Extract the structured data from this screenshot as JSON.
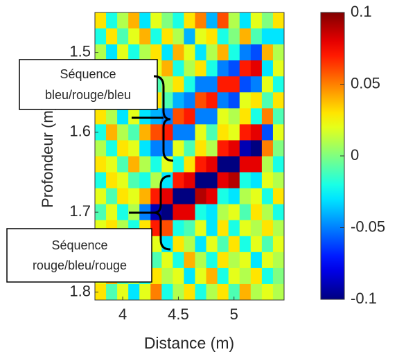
{
  "chart_data": {
    "type": "heatmap",
    "xlabel": "Distance (m)",
    "ylabel": "Profondeur (m)",
    "x": [
      3.8,
      3.9,
      4.0,
      4.1,
      4.2,
      4.3,
      4.4,
      4.5,
      4.6,
      4.7,
      4.8,
      4.9,
      5.0,
      5.1,
      5.2,
      5.3,
      5.4
    ],
    "y": [
      1.46,
      1.48,
      1.5,
      1.52,
      1.54,
      1.56,
      1.58,
      1.6,
      1.62,
      1.64,
      1.66,
      1.68,
      1.7,
      1.72,
      1.74,
      1.76,
      1.78,
      1.8
    ],
    "values": [
      [
        0.03,
        -0.02,
        0.01,
        0.04,
        -0.03,
        0.02,
        0.0,
        -0.02,
        0.03,
        0.05,
        -0.04,
        0.06,
        0.01,
        -0.03,
        0.02,
        0.0,
        0.03
      ],
      [
        -0.02,
        0.03,
        -0.01,
        0.02,
        0.04,
        -0.02,
        0.03,
        0.01,
        -0.04,
        0.02,
        0.03,
        -0.02,
        0.0,
        0.04,
        -0.01,
        -0.03,
        -0.03
      ],
      [
        0.01,
        -0.03,
        0.02,
        -0.02,
        0.01,
        0.03,
        -0.03,
        0.04,
        0.02,
        -0.03,
        0.01,
        0.04,
        -0.02,
        -0.05,
        -0.06,
        0.04,
        0.01
      ],
      [
        0.04,
        0.01,
        -0.02,
        0.03,
        -0.01,
        0.02,
        0.04,
        -0.02,
        0.01,
        0.03,
        -0.02,
        -0.05,
        -0.06,
        0.07,
        0.08,
        -0.03,
        0.02
      ],
      [
        -0.01,
        0.03,
        0.02,
        -0.03,
        0.02,
        -0.01,
        0.01,
        0.03,
        -0.02,
        -0.05,
        -0.05,
        0.07,
        0.07,
        -0.06,
        -0.05,
        0.02,
        -0.02
      ],
      [
        0.02,
        -0.02,
        0.03,
        0.01,
        -0.02,
        0.03,
        -0.01,
        -0.04,
        -0.05,
        0.06,
        0.07,
        -0.05,
        -0.06,
        0.02,
        0.03,
        -0.01,
        0.03
      ],
      [
        0.03,
        0.01,
        -0.03,
        0.02,
        -0.03,
        -0.04,
        -0.05,
        0.06,
        0.07,
        -0.05,
        -0.05,
        0.02,
        0.01,
        0.03,
        -0.02,
        0.05,
        -0.01
      ],
      [
        -0.02,
        0.04,
        0.01,
        -0.01,
        0.04,
        0.06,
        0.07,
        -0.05,
        -0.05,
        0.02,
        -0.01,
        0.03,
        0.02,
        0.07,
        0.08,
        -0.06,
        0.02
      ],
      [
        0.01,
        -0.02,
        0.03,
        0.02,
        -0.03,
        -0.05,
        -0.05,
        0.02,
        -0.01,
        0.03,
        0.01,
        0.07,
        0.08,
        -0.09,
        -0.1,
        0.05,
        0.0
      ],
      [
        0.03,
        0.02,
        -0.01,
        0.04,
        0.01,
        -0.02,
        0.02,
        -0.02,
        0.03,
        0.07,
        0.08,
        -0.1,
        -0.1,
        0.08,
        0.08,
        0.01,
        -0.02
      ],
      [
        -0.02,
        0.03,
        0.02,
        -0.01,
        -0.02,
        0.01,
        -0.03,
        0.07,
        0.08,
        -0.1,
        -0.1,
        0.08,
        0.09,
        -0.02,
        -0.03,
        0.02,
        0.01
      ],
      [
        0.02,
        -0.01,
        0.03,
        0.02,
        0.04,
        0.07,
        0.08,
        -0.1,
        -0.1,
        0.09,
        0.08,
        -0.02,
        -0.03,
        0.01,
        0.02,
        -0.02,
        0.03
      ],
      [
        -0.01,
        0.02,
        -0.02,
        0.01,
        -0.05,
        -0.09,
        -0.1,
        0.08,
        0.08,
        -0.02,
        -0.03,
        0.01,
        0.02,
        -0.01,
        0.03,
        0.01,
        -0.02
      ],
      [
        0.02,
        0.03,
        0.01,
        -0.02,
        0.03,
        0.07,
        0.06,
        -0.02,
        -0.01,
        0.02,
        -0.03,
        0.03,
        -0.02,
        0.02,
        0.01,
        0.03,
        0.01
      ],
      [
        0.01,
        -0.02,
        0.02,
        0.03,
        -0.01,
        0.02,
        -0.03,
        0.03,
        0.01,
        -0.03,
        0.02,
        -0.01,
        0.03,
        -0.02,
        0.02,
        -0.01,
        0.02
      ],
      [
        -0.03,
        0.01,
        0.03,
        -0.02,
        0.02,
        -0.01,
        0.02,
        -0.02,
        0.04,
        0.01,
        -0.02,
        0.03,
        0.01,
        0.02,
        -0.03,
        0.02,
        0.01
      ],
      [
        0.02,
        0.04,
        -0.01,
        0.01,
        -0.02,
        0.03,
        0.01,
        0.02,
        -0.03,
        0.02,
        0.04,
        -0.02,
        0.02,
        0.01,
        0.03,
        -0.02,
        0.0
      ],
      [
        0.03,
        -0.01,
        0.02,
        -0.03,
        0.02,
        0.05,
        -0.02,
        0.01,
        0.03,
        -0.02,
        0.01,
        0.03,
        -0.01,
        0.04,
        0.01,
        0.02,
        0.01
      ]
    ],
    "xlim": [
      3.75,
      5.45
    ],
    "xticks": [
      4,
      4.5,
      5
    ],
    "ylim": [
      1.45,
      1.81
    ],
    "yticks": [
      1.5,
      1.6,
      1.7,
      1.8
    ],
    "y_reversed": true,
    "colormap": "jet",
    "clim": [
      -0.1,
      0.1
    ],
    "cticks": [
      0.1,
      0.05,
      0,
      -0.05,
      -0.1
    ],
    "annotations": [
      {
        "lines": [
          "Séquence",
          "bleu/rouge/bleu"
        ]
      },
      {
        "lines": [
          "Séquence",
          "rouge/bleu/rouge"
        ]
      }
    ]
  }
}
